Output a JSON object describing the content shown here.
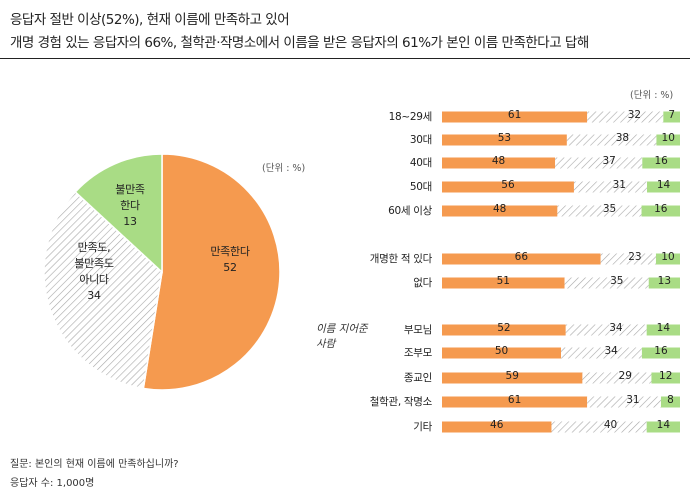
{
  "header": {
    "title_line1": "응답자 절반 이상(52%), 현재 이름에 만족하고 있어",
    "title_line2": "개명 경험 있는 응답자의 66%, 철학관·작명소에서 이름을 받은 응답자의 61%가 본인 이름 만족한다고 답해"
  },
  "footer": {
    "question": "질문:  본인의 현재 이름에 만족하십니까?",
    "respondents": "응답자 수: 1,000명"
  },
  "colors": {
    "satisfied": "#F59A4F",
    "neutral_hatch": "#A8A8A8",
    "dissatisfied": "#A9DC85"
  },
  "chart_data": [
    {
      "type": "pie",
      "unit_label": "(단위 : %)",
      "slices": [
        {
          "label": "만족한다",
          "value": 52,
          "color": "#F59A4F",
          "pattern": "solid"
        },
        {
          "label": "만족도, 불만족도 아니다",
          "label_lines": [
            "만족도,",
            "불만족도",
            "아니다"
          ],
          "value": 34,
          "color": "#A8A8A8",
          "pattern": "hatch"
        },
        {
          "label": "불만족한다",
          "label_lines": [
            "불만족",
            "한다"
          ],
          "value": 13,
          "color": "#A9DC85",
          "pattern": "solid"
        }
      ]
    },
    {
      "type": "bar",
      "orientation": "horizontal",
      "stacked": true,
      "unit_label": "(단위 : %)",
      "group_note": [
        "이름 지어준",
        "사람"
      ],
      "categories": [
        "18~29세",
        "30대",
        "40대",
        "50대",
        "60세 이상",
        "개명한 적 있다",
        "없다",
        "부모님",
        "조부모",
        "종교인",
        "철학관, 작명소",
        "기타"
      ],
      "series": [
        {
          "key": "satisfied",
          "color": "#F59A4F",
          "pattern": "solid",
          "values": [
            61,
            53,
            48,
            56,
            48,
            66,
            51,
            52,
            50,
            59,
            61,
            46
          ]
        },
        {
          "key": "neutral",
          "color": "#A8A8A8",
          "pattern": "hatch",
          "values": [
            32,
            38,
            37,
            31,
            35,
            23,
            35,
            34,
            34,
            29,
            31,
            40
          ]
        },
        {
          "key": "dissatisfied",
          "color": "#A9DC85",
          "pattern": "solid",
          "values": [
            7,
            10,
            16,
            14,
            16,
            10,
            13,
            14,
            16,
            12,
            8,
            14
          ]
        }
      ],
      "xlim": [
        0,
        100
      ]
    }
  ]
}
